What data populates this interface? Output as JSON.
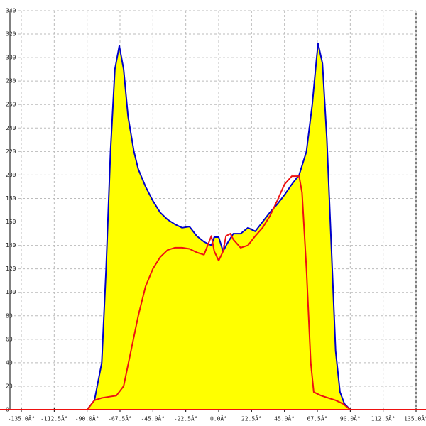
{
  "chart_data": {
    "type": "area",
    "xlim": [
      -135,
      135
    ],
    "ylim": [
      0,
      340
    ],
    "xticks": [
      {
        "value": -135,
        "label": "-135.0Â°"
      },
      {
        "value": -112.5,
        "label": "-112.5Â°"
      },
      {
        "value": -90,
        "label": "-90.0Â°"
      },
      {
        "value": -67.5,
        "label": "-67.5Â°"
      },
      {
        "value": -45,
        "label": "-45.0Â°"
      },
      {
        "value": -22.5,
        "label": "-22.5Â°"
      },
      {
        "value": 0,
        "label": "0.0Â°"
      },
      {
        "value": 22.5,
        "label": "22.5Â°"
      },
      {
        "value": 45,
        "label": "45.0Â°"
      },
      {
        "value": 67.5,
        "label": "67.5Â°"
      },
      {
        "value": 90,
        "label": "90.0Â°"
      },
      {
        "value": 112.5,
        "label": "112.5Â°"
      },
      {
        "value": 135,
        "label": "135.0Â°"
      }
    ],
    "yticks": [
      0,
      20,
      40,
      60,
      80,
      100,
      120,
      140,
      160,
      180,
      200,
      220,
      240,
      260,
      280,
      300,
      320,
      340
    ],
    "grid": true,
    "series": [
      {
        "color": "#0000cc",
        "fill": "#ffff00",
        "x": [
          -90,
          -85,
          -80,
          -77,
          -74,
          -71,
          -68,
          -65,
          -62,
          -58,
          -55,
          -50,
          -45,
          -40,
          -35,
          -30,
          -25,
          -20,
          -15,
          -10,
          -5,
          -3,
          0,
          3,
          6,
          10,
          15,
          20,
          25,
          30,
          35,
          40,
          45,
          50,
          55,
          60,
          64,
          67,
          68,
          71,
          74,
          77,
          80,
          83,
          86,
          90
        ],
        "values": [
          0,
          8,
          40,
          120,
          220,
          290,
          310,
          290,
          250,
          220,
          205,
          190,
          178,
          168,
          162,
          158,
          155,
          156,
          148,
          143,
          140,
          147,
          147,
          135,
          142,
          150,
          150,
          155,
          152,
          160,
          168,
          175,
          183,
          192,
          200,
          220,
          260,
          300,
          312,
          295,
          230,
          140,
          50,
          15,
          5,
          0
        ]
      },
      {
        "color": "#ee1111",
        "x": [
          -90,
          -85,
          -80,
          -75,
          -70,
          -65,
          -60,
          -55,
          -50,
          -45,
          -40,
          -35,
          -30,
          -25,
          -20,
          -15,
          -10,
          -5,
          -3,
          0,
          3,
          5,
          8,
          10,
          15,
          20,
          25,
          30,
          35,
          40,
          45,
          50,
          55,
          57,
          60,
          63,
          65,
          70,
          75,
          80,
          85,
          90
        ],
        "values": [
          0,
          8,
          10,
          11,
          12,
          20,
          50,
          80,
          105,
          120,
          130,
          136,
          138,
          138,
          137,
          134,
          132,
          148,
          135,
          127,
          135,
          148,
          150,
          145,
          138,
          140,
          148,
          155,
          165,
          178,
          192,
          199,
          199,
          185,
          120,
          40,
          15,
          12,
          10,
          8,
          5,
          0
        ]
      }
    ]
  }
}
